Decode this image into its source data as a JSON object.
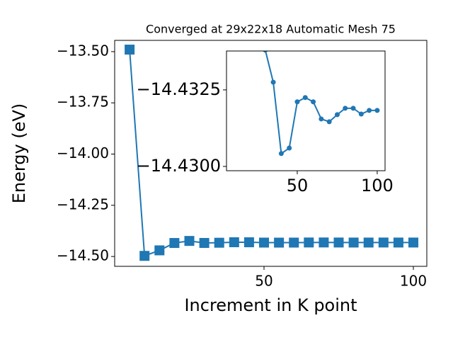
{
  "chart_data": [
    {
      "type": "line",
      "title": "Converged at 29x22x18 Automatic Mesh 75",
      "x_label": "Increment in K point",
      "y_label": "Energy (eV)",
      "x": [
        5,
        10,
        15,
        20,
        25,
        30,
        35,
        40,
        45,
        50,
        55,
        60,
        65,
        70,
        75,
        80,
        85,
        90,
        95,
        100
      ],
      "series": [
        {
          "color": "#1f77b4",
          "marker": "square",
          "values": [
            -13.49,
            -14.497,
            -14.47,
            -14.434,
            -14.424,
            -14.4338,
            -14.43275,
            -14.43042,
            -14.4306,
            -14.43211,
            -14.43225,
            -14.43211,
            -14.43155,
            -14.43146,
            -14.43169,
            -14.4319,
            -14.4319,
            -14.43171,
            -14.43183,
            -14.43183
          ]
        }
      ],
      "xlim": [
        0,
        104.5
      ],
      "xticks": [
        50,
        100
      ],
      "ylim": [
        -14.548,
        -13.445
      ],
      "yticks": [
        {
          "value": -14.5,
          "label": "−14.50"
        },
        {
          "value": -14.25,
          "label": "−14.25"
        },
        {
          "value": -14.0,
          "label": "−14.00"
        },
        {
          "value": -13.75,
          "label": "−13.75"
        },
        {
          "value": -13.5,
          "label": "−13.50"
        }
      ]
    },
    {
      "type": "line",
      "x": [
        30,
        35,
        40,
        45,
        50,
        55,
        60,
        65,
        70,
        75,
        80,
        85,
        90,
        95,
        100
      ],
      "series": [
        {
          "color": "#1f77b4",
          "marker": "circle",
          "values": [
            -14.4338,
            -14.43275,
            -14.43042,
            -14.4306,
            -14.43211,
            -14.43225,
            -14.43211,
            -14.43155,
            -14.43146,
            -14.43169,
            -14.4319,
            -14.4319,
            -14.43171,
            -14.43183,
            -14.43183
          ]
        }
      ],
      "xlim": [
        5.75,
        104.9
      ],
      "xticks": [
        50,
        100
      ],
      "ylim": [
        -14.42986,
        -14.43377
      ],
      "yticks": [
        {
          "value": -14.43,
          "label": "−14.4300"
        },
        {
          "value": -14.4325,
          "label": "−14.4325"
        }
      ]
    }
  ]
}
